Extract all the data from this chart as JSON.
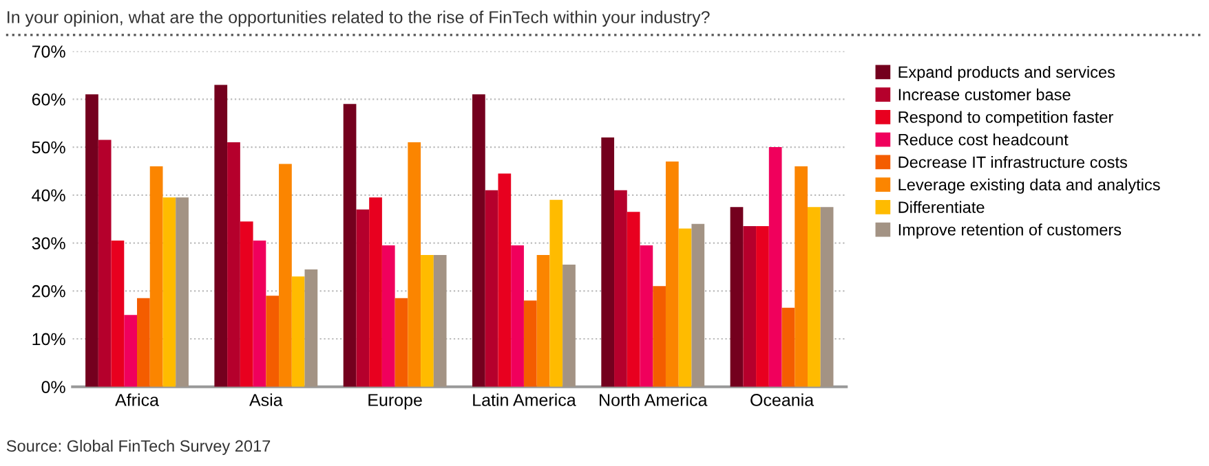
{
  "chart_data": {
    "type": "bar",
    "title": "In your opinion, what are the opportunities related to the rise of FinTech within your industry?",
    "categories": [
      "Africa",
      "Asia",
      "Europe",
      "Latin America",
      "North America",
      "Oceania"
    ],
    "series": [
      {
        "name": "Expand products and services",
        "color": "#74001e",
        "values": [
          61,
          63,
          59,
          61,
          52,
          37.5
        ]
      },
      {
        "name": "Increase customer base",
        "color": "#b5002c",
        "values": [
          51.5,
          51,
          37,
          41,
          41,
          33.5
        ]
      },
      {
        "name": "Respond to competition faster",
        "color": "#e8001f",
        "values": [
          30.5,
          34.5,
          39.5,
          44.5,
          36.5,
          33.5
        ]
      },
      {
        "name": "Reduce cost headcount",
        "color": "#f0005c",
        "values": [
          15,
          30.5,
          29.5,
          29.5,
          29.5,
          50
        ]
      },
      {
        "name": "Decrease IT infrastructure costs",
        "color": "#f45d00",
        "values": [
          18.5,
          19,
          18.5,
          18,
          21,
          16.5
        ]
      },
      {
        "name": "Leverage existing data and analytics",
        "color": "#fb8500",
        "values": [
          46,
          46.5,
          51,
          27.5,
          47,
          46
        ]
      },
      {
        "name": "Differentiate",
        "color": "#ffbb00",
        "values": [
          39.5,
          23,
          27.5,
          39,
          33,
          37.5
        ]
      },
      {
        "name": "Improve retention of customers",
        "color": "#a39384",
        "values": [
          39.5,
          24.5,
          27.5,
          25.5,
          34,
          37.5
        ]
      }
    ],
    "ylim": [
      0,
      70
    ],
    "yticks": [
      {
        "value": 0,
        "label": "0%"
      },
      {
        "value": 10,
        "label": "10%"
      },
      {
        "value": 20,
        "label": "20%"
      },
      {
        "value": 30,
        "label": "30%"
      },
      {
        "value": 40,
        "label": "40%"
      },
      {
        "value": 50,
        "label": "50%"
      },
      {
        "value": 60,
        "label": "60%"
      },
      {
        "value": 70,
        "label": "70%"
      }
    ],
    "grid": "y",
    "legend": "right",
    "annotations": [
      "Source: Global FinTech Survey 2017"
    ]
  }
}
